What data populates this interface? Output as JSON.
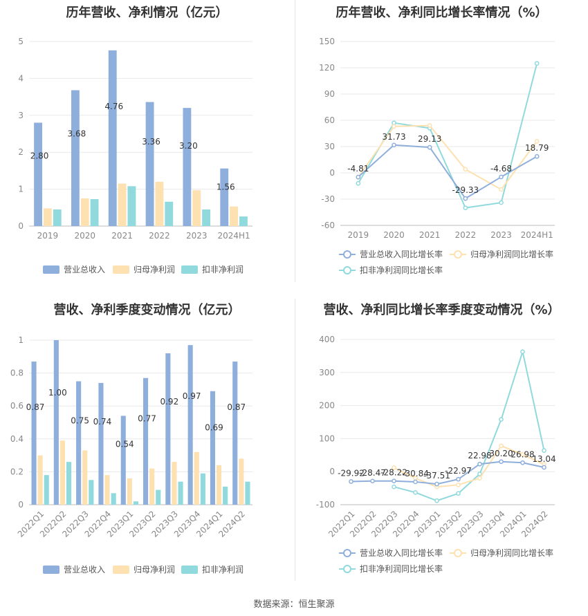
{
  "source": "数据来源：恒生聚源",
  "colors": {
    "series1": "#8eaedc",
    "series2": "#fde1b0",
    "series3": "#90d9dc"
  },
  "chart_data": [
    {
      "type": "bar",
      "title": "历年营收、净利情况（亿元）",
      "categories": [
        "2019",
        "2020",
        "2021",
        "2022",
        "2023",
        "2024H1"
      ],
      "ylim": [
        0,
        5
      ],
      "yticks": [
        0,
        1,
        2,
        3,
        4,
        5
      ],
      "series": [
        {
          "name": "营业总收入",
          "values": [
            2.8,
            3.68,
            4.76,
            3.36,
            3.2,
            1.56
          ],
          "labels": [
            "2.80",
            "3.68",
            "4.76",
            "3.36",
            "3.20",
            "1.56"
          ]
        },
        {
          "name": "归母净利润",
          "values": [
            0.48,
            0.75,
            1.15,
            1.2,
            0.97,
            0.53
          ]
        },
        {
          "name": "扣非净利润",
          "values": [
            0.45,
            0.73,
            1.08,
            0.66,
            0.45,
            0.26
          ]
        }
      ],
      "grid": true,
      "legend": "bottom"
    },
    {
      "type": "line",
      "title": "历年营收、净利同比增长率情况（%）",
      "categories": [
        "2019",
        "2020",
        "2021",
        "2022",
        "2023",
        "2024H1"
      ],
      "ylim": [
        -60,
        150
      ],
      "yticks": [
        -60,
        -30,
        0,
        30,
        60,
        90,
        120,
        150
      ],
      "series": [
        {
          "name": "营业总收入同比增长率",
          "values": [
            -4.81,
            31.73,
            29.13,
            -29.33,
            -4.68,
            18.79
          ],
          "labels": [
            "-4.81",
            "31.73",
            "29.13",
            "-29.33",
            "-4.68",
            "18.79"
          ]
        },
        {
          "name": "归母净利润同比增长率",
          "values": [
            -5,
            53,
            54,
            4,
            -19,
            36
          ]
        },
        {
          "name": "扣非净利润同比增长率",
          "values": [
            -12,
            57,
            51,
            -40,
            -34,
            125
          ]
        }
      ],
      "grid": true,
      "legend": "bottom"
    },
    {
      "type": "bar",
      "title": "营收、净利季度变动情况（亿元）",
      "categories": [
        "2022Q1",
        "2022Q2",
        "2022Q3",
        "2022Q4",
        "2023Q1",
        "2023Q2",
        "2023Q3",
        "2023Q4",
        "2024Q1",
        "2024Q2"
      ],
      "ylim": [
        0,
        1
      ],
      "yticks": [
        0,
        0.2,
        0.4,
        0.6,
        0.8,
        1
      ],
      "series": [
        {
          "name": "营业总收入",
          "values": [
            0.87,
            1.0,
            0.75,
            0.74,
            0.54,
            0.77,
            0.92,
            0.97,
            0.69,
            0.87
          ],
          "labels": [
            "0.87",
            "1.00",
            "0.75",
            "0.74",
            "0.54",
            "0.77",
            "0.92",
            "0.97",
            "0.69",
            "0.87"
          ]
        },
        {
          "name": "归母净利润",
          "values": [
            0.3,
            0.39,
            0.33,
            0.18,
            0.16,
            0.22,
            0.26,
            0.32,
            0.24,
            0.28
          ]
        },
        {
          "name": "扣非净利润",
          "values": [
            0.18,
            0.26,
            0.15,
            0.07,
            0.02,
            0.09,
            0.14,
            0.19,
            0.11,
            0.14
          ]
        }
      ],
      "grid": true,
      "legend": "bottom"
    },
    {
      "type": "line",
      "title": "营收、净利同比增长率季度变动情况（%）",
      "categories": [
        "2022Q1",
        "2022Q2",
        "2022Q3",
        "2022Q4",
        "2023Q1",
        "2023Q2",
        "2023Q3",
        "2023Q4",
        "2024Q1",
        "2024Q2"
      ],
      "ylim": [
        -100,
        400
      ],
      "yticks": [
        -100,
        0,
        100,
        200,
        300,
        400
      ],
      "series": [
        {
          "name": "营业总收入同比增长率",
          "values": [
            -29.92,
            -28.47,
            -28.22,
            -30.84,
            -37.51,
            -22.97,
            22.98,
            30.2,
            26.98,
            13.04
          ],
          "labels": [
            "-29.92",
            "-28.47",
            "-28.22",
            "-30.84",
            "-37.51",
            "-22.97",
            "22.98",
            "30.20",
            "26.98",
            "13.04"
          ]
        },
        {
          "name": "归母净利润同比增长率",
          "values": [
            null,
            null,
            12,
            -20,
            -46,
            -40,
            -20,
            78,
            52,
            22
          ]
        },
        {
          "name": "扣非净利润同比增长率",
          "values": [
            null,
            null,
            -46,
            -63,
            -88,
            -66,
            -7,
            158,
            363,
            64
          ]
        }
      ],
      "grid": true,
      "legend": "bottom"
    }
  ]
}
